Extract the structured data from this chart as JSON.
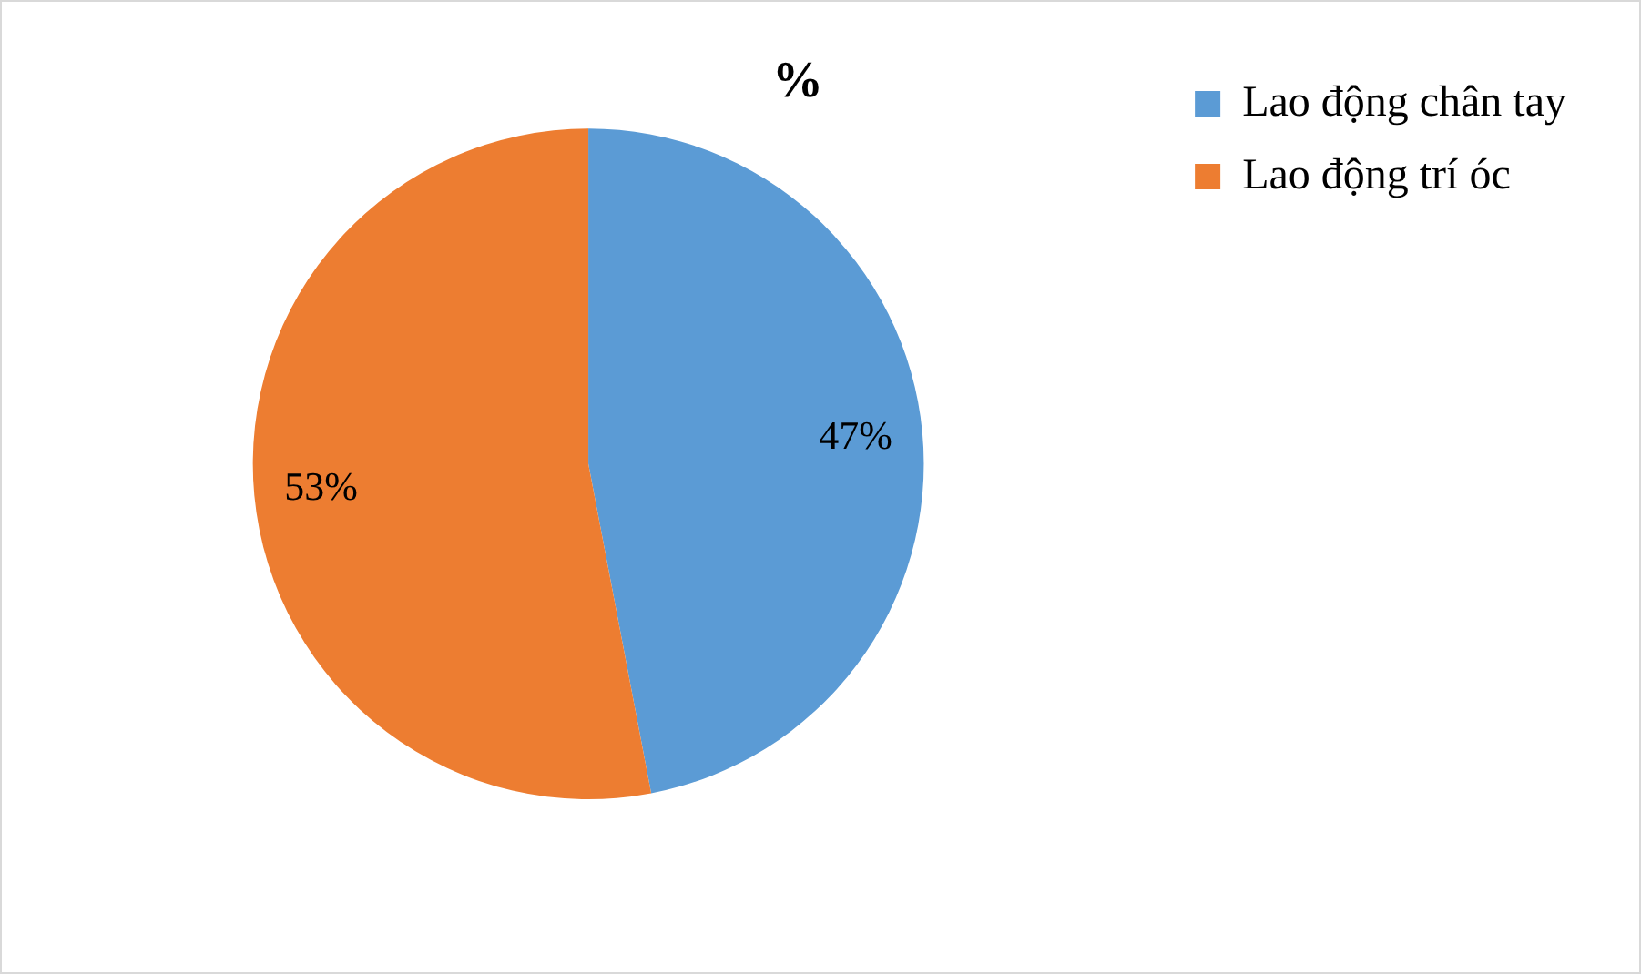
{
  "chart_data": {
    "type": "pie",
    "title": "%",
    "categories": [
      "Lao động chân tay",
      "Lao động trí óc"
    ],
    "values": [
      47,
      53
    ],
    "colors": [
      "#5b9bd5",
      "#ed7d31"
    ],
    "value_labels": [
      "47%",
      "53%"
    ],
    "legend": "top right"
  }
}
